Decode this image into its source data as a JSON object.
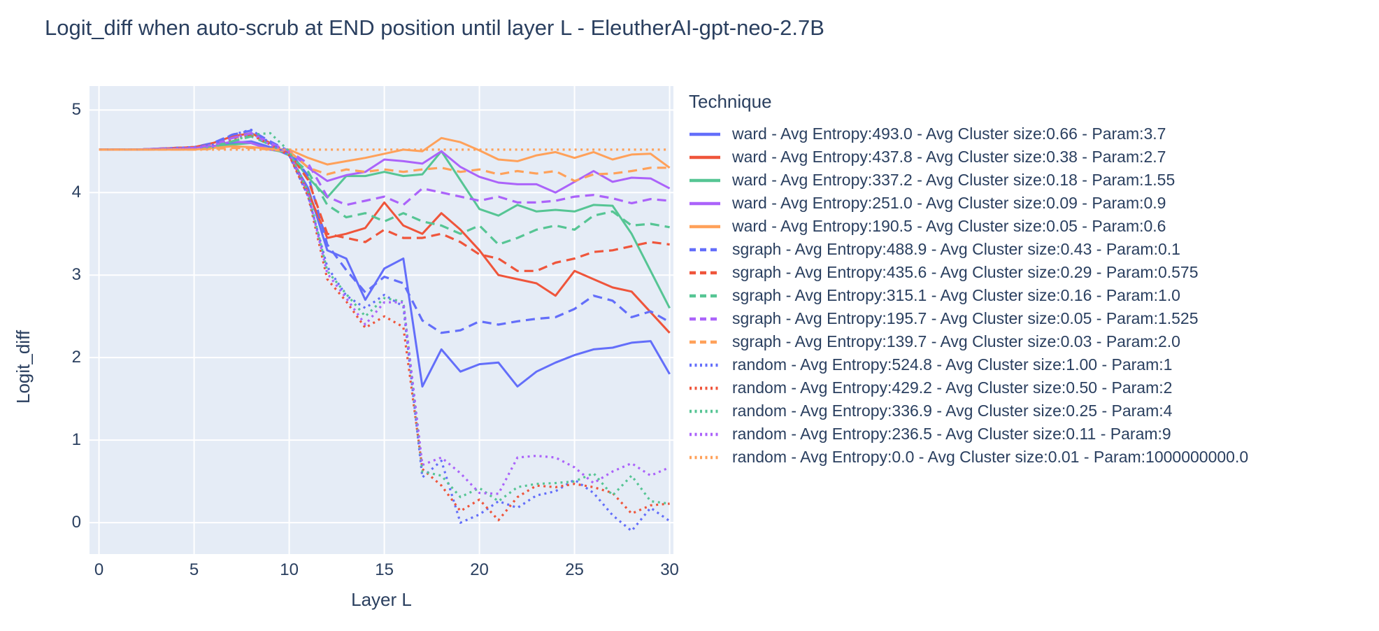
{
  "title": "Logit_diff when auto-scrub at END position until layer L - EleutherAI-gpt-neo-2.7B",
  "chart_data": {
    "type": "line",
    "title": "Logit_diff when auto-scrub at END position until layer L - EleutherAI-gpt-neo-2.7B",
    "xlabel": "Layer L",
    "ylabel": "Logit_diff",
    "legend_title": "Technique",
    "legend_position": "right",
    "grid": true,
    "plot_bg": "#e5ecf6",
    "grid_color": "#ffffff",
    "text_color": "#2a3f5f",
    "xlim": [
      -0.5,
      30.2
    ],
    "ylim": [
      -0.38,
      5.29
    ],
    "xticks": [
      0,
      5,
      10,
      15,
      20,
      25,
      30
    ],
    "yticks": [
      0,
      1,
      2,
      3,
      4,
      5
    ],
    "x": [
      0,
      1,
      2,
      3,
      4,
      5,
      6,
      7,
      8,
      9,
      10,
      11,
      12,
      13,
      14,
      15,
      16,
      17,
      18,
      19,
      20,
      21,
      22,
      23,
      24,
      25,
      26,
      27,
      28,
      29,
      30
    ],
    "series": [
      {
        "label": "ward - Avg Entropy:493.0 - Avg Cluster size:0.66 - Param:3.7",
        "color": "#636efa",
        "dash": "solid",
        "values": [
          4.52,
          4.52,
          4.52,
          4.53,
          4.53,
          4.54,
          4.56,
          4.6,
          4.62,
          4.55,
          4.45,
          4.05,
          3.3,
          3.2,
          2.7,
          3.08,
          3.2,
          1.65,
          2.1,
          1.83,
          1.92,
          1.94,
          1.65,
          1.83,
          1.94,
          2.03,
          2.1,
          2.12,
          2.18,
          2.2,
          1.8
        ]
      },
      {
        "label": "ward - Avg Entropy:437.8 - Avg Cluster size:0.38 - Param:2.7",
        "color": "#ef553b",
        "dash": "solid",
        "values": [
          4.52,
          4.52,
          4.52,
          4.53,
          4.54,
          4.55,
          4.6,
          4.68,
          4.72,
          4.6,
          4.45,
          4.0,
          3.45,
          3.5,
          3.57,
          3.88,
          3.6,
          3.5,
          3.75,
          3.55,
          3.3,
          3.0,
          2.95,
          2.9,
          2.75,
          3.05,
          2.95,
          2.85,
          2.8,
          2.55,
          2.3
        ]
      },
      {
        "label": "ward - Avg Entropy:337.2 - Avg Cluster size:0.18 - Param:1.55",
        "color": "#56c594",
        "dash": "solid",
        "values": [
          4.52,
          4.52,
          4.52,
          4.53,
          4.53,
          4.54,
          4.55,
          4.58,
          4.6,
          4.52,
          4.48,
          4.18,
          3.94,
          4.2,
          4.2,
          4.25,
          4.2,
          4.22,
          4.5,
          4.15,
          3.8,
          3.72,
          3.85,
          3.77,
          3.79,
          3.77,
          3.85,
          3.84,
          3.5,
          3.05,
          2.6
        ]
      },
      {
        "label": "ward - Avg Entropy:251.0 - Avg Cluster size:0.09 - Param:0.9",
        "color": "#ab63fa",
        "dash": "solid",
        "values": [
          4.52,
          4.52,
          4.52,
          4.53,
          4.53,
          4.54,
          4.56,
          4.62,
          4.6,
          4.52,
          4.5,
          4.3,
          4.14,
          4.21,
          4.25,
          4.4,
          4.38,
          4.35,
          4.5,
          4.31,
          4.19,
          4.12,
          4.1,
          4.1,
          4.0,
          4.13,
          4.26,
          4.13,
          4.18,
          4.17,
          4.05
        ]
      },
      {
        "label": "ward - Avg Entropy:190.5 - Avg Cluster size:0.05 - Param:0.6",
        "color": "#ffa15a",
        "dash": "solid",
        "values": [
          4.52,
          4.52,
          4.52,
          4.52,
          4.52,
          4.52,
          4.54,
          4.56,
          4.55,
          4.53,
          4.52,
          4.42,
          4.34,
          4.38,
          4.42,
          4.47,
          4.52,
          4.5,
          4.66,
          4.61,
          4.51,
          4.4,
          4.38,
          4.45,
          4.49,
          4.42,
          4.49,
          4.4,
          4.46,
          4.47,
          4.3
        ]
      },
      {
        "label": "sgraph - Avg Entropy:488.9 - Avg Cluster size:0.43 - Param:0.1",
        "color": "#636efa",
        "dash": "dash",
        "values": [
          4.52,
          4.52,
          4.52,
          4.53,
          4.54,
          4.55,
          4.6,
          4.7,
          4.75,
          4.62,
          4.5,
          4.2,
          3.37,
          3.06,
          2.79,
          2.98,
          2.9,
          2.45,
          2.3,
          2.33,
          2.44,
          2.4,
          2.44,
          2.47,
          2.49,
          2.59,
          2.75,
          2.69,
          2.49,
          2.56,
          2.43
        ]
      },
      {
        "label": "sgraph - Avg Entropy:435.6 - Avg Cluster size:0.29 - Param:0.575",
        "color": "#ef553b",
        "dash": "dash",
        "values": [
          4.52,
          4.52,
          4.52,
          4.53,
          4.54,
          4.55,
          4.58,
          4.66,
          4.7,
          4.6,
          4.48,
          4.15,
          3.5,
          3.45,
          3.4,
          3.55,
          3.45,
          3.45,
          3.5,
          3.4,
          3.25,
          3.2,
          3.05,
          3.05,
          3.15,
          3.2,
          3.28,
          3.3,
          3.35,
          3.4,
          3.37
        ]
      },
      {
        "label": "sgraph - Avg Entropy:315.1 - Avg Cluster size:0.16 - Param:1.0",
        "color": "#56c594",
        "dash": "dash",
        "values": [
          4.52,
          4.52,
          4.52,
          4.53,
          4.53,
          4.54,
          4.56,
          4.62,
          4.68,
          4.58,
          4.45,
          4.25,
          3.85,
          3.7,
          3.75,
          3.65,
          3.75,
          3.65,
          3.6,
          3.5,
          3.6,
          3.37,
          3.45,
          3.55,
          3.6,
          3.55,
          3.72,
          3.77,
          3.6,
          3.62,
          3.58
        ]
      },
      {
        "label": "sgraph - Avg Entropy:195.7 - Avg Cluster size:0.05 - Param:1.525",
        "color": "#ab63fa",
        "dash": "dash",
        "values": [
          4.52,
          4.52,
          4.52,
          4.53,
          4.53,
          4.54,
          4.58,
          4.66,
          4.72,
          4.6,
          4.5,
          4.35,
          3.95,
          3.85,
          3.9,
          3.95,
          3.85,
          4.05,
          4.0,
          3.95,
          3.9,
          3.95,
          3.88,
          3.88,
          3.9,
          3.95,
          3.97,
          3.93,
          3.87,
          3.92,
          3.9
        ]
      },
      {
        "label": "sgraph - Avg Entropy:139.7 - Avg Cluster size:0.03 - Param:2.0",
        "color": "#ffa15a",
        "dash": "dash",
        "values": [
          4.52,
          4.52,
          4.52,
          4.52,
          4.52,
          4.52,
          4.53,
          4.54,
          4.54,
          4.52,
          4.5,
          4.3,
          4.22,
          4.28,
          4.25,
          4.28,
          4.25,
          4.28,
          4.3,
          4.25,
          4.28,
          4.22,
          4.26,
          4.23,
          4.26,
          4.14,
          4.22,
          4.23,
          4.26,
          4.3,
          4.3
        ]
      },
      {
        "label": "random - Avg Entropy:524.8 - Avg Cluster size:1.00 - Param:1",
        "color": "#636efa",
        "dash": "dot",
        "values": [
          4.52,
          4.52,
          4.52,
          4.53,
          4.54,
          4.55,
          4.58,
          4.7,
          4.76,
          4.6,
          4.45,
          3.95,
          3.1,
          2.75,
          2.6,
          2.76,
          2.62,
          0.55,
          0.75,
          0.0,
          0.1,
          0.26,
          0.18,
          0.33,
          0.38,
          0.52,
          0.36,
          0.09,
          -0.1,
          0.18,
          0.02
        ]
      },
      {
        "label": "random - Avg Entropy:429.2 - Avg Cluster size:0.50 - Param:2",
        "color": "#ef553b",
        "dash": "dot",
        "values": [
          4.52,
          4.52,
          4.52,
          4.53,
          4.53,
          4.54,
          4.56,
          4.64,
          4.7,
          4.58,
          4.45,
          3.95,
          2.95,
          2.68,
          2.36,
          2.5,
          2.37,
          0.65,
          0.45,
          0.14,
          0.28,
          0.03,
          0.31,
          0.45,
          0.43,
          0.47,
          0.43,
          0.36,
          0.11,
          0.21,
          0.23
        ]
      },
      {
        "label": "random - Avg Entropy:336.9 - Avg Cluster size:0.25 - Param:4",
        "color": "#56c594",
        "dash": "dot",
        "values": [
          4.52,
          4.52,
          4.52,
          4.53,
          4.53,
          4.54,
          4.55,
          4.62,
          4.7,
          4.72,
          4.5,
          4.0,
          3.05,
          2.77,
          2.5,
          2.72,
          2.68,
          0.62,
          0.57,
          0.31,
          0.42,
          0.26,
          0.43,
          0.47,
          0.48,
          0.5,
          0.6,
          0.33,
          0.57,
          0.26,
          0.23
        ]
      },
      {
        "label": "random - Avg Entropy:236.5 - Avg Cluster size:0.11 - Param:9",
        "color": "#ab63fa",
        "dash": "dot",
        "values": [
          4.52,
          4.52,
          4.52,
          4.53,
          4.53,
          4.54,
          4.56,
          4.66,
          4.72,
          4.58,
          4.48,
          3.98,
          3.02,
          2.72,
          2.4,
          2.67,
          2.67,
          0.7,
          0.79,
          0.6,
          0.36,
          0.35,
          0.79,
          0.81,
          0.79,
          0.67,
          0.48,
          0.62,
          0.72,
          0.57,
          0.67
        ]
      },
      {
        "label": "random - Avg Entropy:0.0 - Avg Cluster size:0.01 - Param:1000000000.0",
        "color": "#ffa15a",
        "dash": "dot",
        "values": [
          4.52,
          4.52,
          4.52,
          4.52,
          4.52,
          4.52,
          4.52,
          4.52,
          4.52,
          4.52,
          4.52,
          4.52,
          4.52,
          4.52,
          4.52,
          4.52,
          4.52,
          4.52,
          4.52,
          4.52,
          4.52,
          4.52,
          4.52,
          4.52,
          4.52,
          4.52,
          4.52,
          4.52,
          4.52,
          4.52,
          4.52
        ]
      }
    ]
  }
}
